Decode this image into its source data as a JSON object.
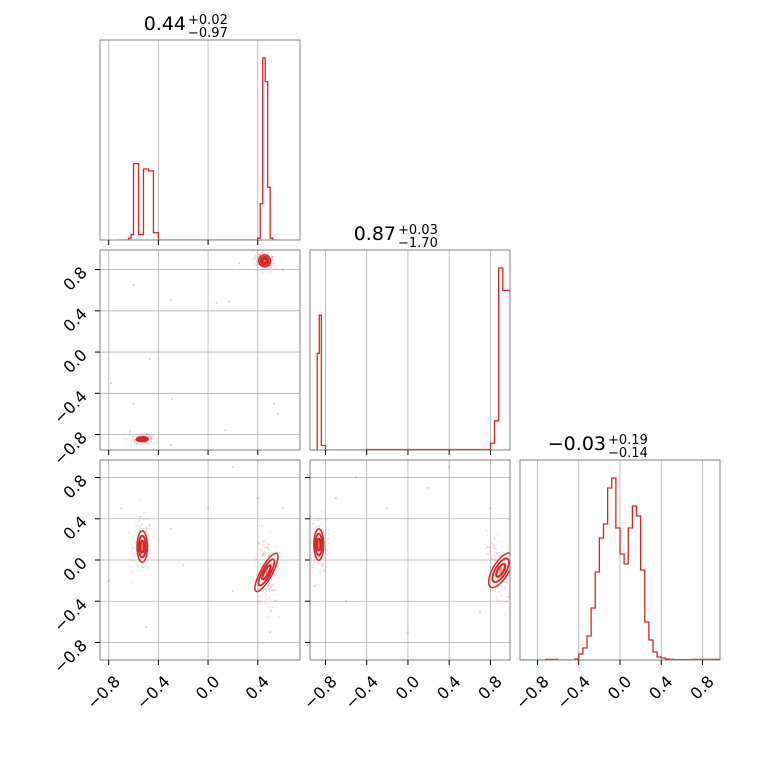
{
  "colors": {
    "series": "#d62728",
    "grid": "#b0b0b0",
    "frame": "#808080",
    "tick": "#000000"
  },
  "chart_data": {
    "type": "corner",
    "grid": true,
    "histogram_bins": 50,
    "params": [
      {
        "range": [
          -0.87,
          0.74
        ],
        "ticks": [
          -0.8,
          -0.4,
          0.0,
          0.4
        ],
        "tick_labels": [
          "−0.8",
          "−0.4",
          "0.0",
          "0.4"
        ],
        "title": {
          "value": "0.44",
          "plus": "+0.02",
          "minus": "−0.97"
        },
        "histogram": [
          {
            "x": -0.72,
            "w": 0
          },
          {
            "x": -0.7,
            "w": 0
          },
          {
            "x": -0.68,
            "w": 0
          },
          {
            "x": -0.66,
            "w": 0
          },
          {
            "x": -0.64,
            "w": 0.01
          },
          {
            "x": -0.62,
            "w": 0.03
          },
          {
            "x": -0.6,
            "w": 0.42
          },
          {
            "x": -0.56,
            "w": 0.03
          },
          {
            "x": -0.52,
            "w": 0.39
          },
          {
            "x": -0.48,
            "w": 0.38
          },
          {
            "x": -0.44,
            "w": 0.04
          },
          {
            "x": -0.4,
            "w": 0
          },
          {
            "x": 0.38,
            "w": 0
          },
          {
            "x": 0.4,
            "w": 0.01
          },
          {
            "x": 0.42,
            "w": 0.2
          },
          {
            "x": 0.44,
            "w": 1.0
          },
          {
            "x": 0.46,
            "w": 0.87
          },
          {
            "x": 0.48,
            "w": 0.29
          },
          {
            "x": 0.5,
            "w": 0.01
          },
          {
            "x": 0.52,
            "w": 0
          }
        ]
      },
      {
        "range": [
          -0.95,
          0.99
        ],
        "ticks": [
          -0.8,
          -0.4,
          0.0,
          0.4,
          0.8
        ],
        "tick_labels": [
          "−0.8",
          "−0.4",
          "0.0",
          "0.4",
          "0.8"
        ],
        "title": {
          "value": "0.87",
          "plus": "+0.03",
          "minus": "−1.70"
        },
        "histogram": [
          {
            "x": -0.95,
            "w": 0
          },
          {
            "x": -0.88,
            "w": 0.43
          },
          {
            "x": -0.86,
            "w": 0.6
          },
          {
            "x": -0.84,
            "w": 0.02
          },
          {
            "x": -0.8,
            "w": 0
          },
          {
            "x": -0.4,
            "w": 0.002
          },
          {
            "x": 0.76,
            "w": 0.002
          },
          {
            "x": 0.8,
            "w": 0.03
          },
          {
            "x": 0.84,
            "w": 0.13
          },
          {
            "x": 0.88,
            "w": 0.81
          },
          {
            "x": 0.92,
            "w": 0.71
          },
          {
            "x": 0.99,
            "w": 0.7
          }
        ]
      },
      {
        "range": [
          -0.97,
          0.97
        ],
        "ticks": [
          -0.8,
          -0.4,
          0.0,
          0.4,
          0.8
        ],
        "tick_labels": [
          "−0.8",
          "−0.4",
          "0.0",
          "0.4",
          "0.8"
        ],
        "title": {
          "value": "−0.03",
          "plus": "+0.19",
          "minus": "−0.14"
        },
        "histogram": [
          {
            "x": -0.97,
            "w": 0
          },
          {
            "x": -0.72,
            "w": 0.003
          },
          {
            "x": -0.68,
            "w": 0.003
          },
          {
            "x": -0.6,
            "w": 0
          },
          {
            "x": -0.44,
            "w": 0.005
          },
          {
            "x": -0.4,
            "w": 0.03
          },
          {
            "x": -0.36,
            "w": 0.06
          },
          {
            "x": -0.32,
            "w": 0.12
          },
          {
            "x": -0.28,
            "w": 0.26
          },
          {
            "x": -0.24,
            "w": 0.44
          },
          {
            "x": -0.2,
            "w": 0.61
          },
          {
            "x": -0.16,
            "w": 0.68
          },
          {
            "x": -0.12,
            "w": 0.86
          },
          {
            "x": -0.08,
            "w": 0.91
          },
          {
            "x": -0.04,
            "w": 0.66
          },
          {
            "x": 0.0,
            "w": 0.53
          },
          {
            "x": 0.04,
            "w": 0.48
          },
          {
            "x": 0.08,
            "w": 0.66
          },
          {
            "x": 0.12,
            "w": 0.77
          },
          {
            "x": 0.16,
            "w": 0.72
          },
          {
            "x": 0.2,
            "w": 0.45
          },
          {
            "x": 0.24,
            "w": 0.19
          },
          {
            "x": 0.28,
            "w": 0.1
          },
          {
            "x": 0.32,
            "w": 0.04
          },
          {
            "x": 0.36,
            "w": 0.015
          },
          {
            "x": 0.4,
            "w": 0.01
          },
          {
            "x": 0.44,
            "w": 0.005
          },
          {
            "x": 0.48,
            "w": 0.003
          },
          {
            "x": 0.52,
            "w": 0.002
          },
          {
            "x": 0.6,
            "w": 0.002
          },
          {
            "x": 0.7,
            "w": 0.003
          },
          {
            "x": 0.97,
            "w": 0
          }
        ]
      }
    ],
    "pairs": [
      {
        "x_param": 0,
        "y_param": 1,
        "clusters": [
          {
            "x": 0.455,
            "y": 0.885,
            "sx": 0.025,
            "sy": 0.03,
            "rho": -0.4
          },
          {
            "x": -0.53,
            "y": -0.845,
            "sx": 0.025,
            "sy": 0.012,
            "rho": 0.2
          }
        ],
        "outliers": [
          {
            "x": -0.3,
            "y": 0.5
          },
          {
            "x": 0.07,
            "y": 0.48
          },
          {
            "x": 0.17,
            "y": 0.49
          },
          {
            "x": -0.6,
            "y": 0.65
          },
          {
            "x": -0.47,
            "y": -0.07
          },
          {
            "x": -0.29,
            "y": -0.45
          },
          {
            "x": -0.78,
            "y": -0.3
          },
          {
            "x": -0.6,
            "y": -0.5
          },
          {
            "x": 0.53,
            "y": -0.5
          },
          {
            "x": -0.3,
            "y": -0.9
          },
          {
            "x": 0.14,
            "y": -0.76
          },
          {
            "x": -0.63,
            "y": -0.77
          },
          {
            "x": 0.25,
            "y": 0.86
          },
          {
            "x": 0.6,
            "y": 0.8
          },
          {
            "x": 0.56,
            "y": -0.6
          }
        ]
      },
      {
        "x_param": 0,
        "y_param": 2,
        "clusters": [
          {
            "x": -0.53,
            "y": 0.13,
            "sx": 0.022,
            "sy": 0.08,
            "rho": 0.0
          },
          {
            "x": 0.47,
            "y": -0.12,
            "sx": 0.025,
            "sy": 0.11,
            "rho": -0.3
          }
        ],
        "outliers": [
          {
            "x": -0.7,
            "y": 0.5
          },
          {
            "x": -0.3,
            "y": 0.3
          },
          {
            "x": 0.4,
            "y": 0.6
          },
          {
            "x": 0.0,
            "y": 0.5
          },
          {
            "x": -0.2,
            "y": -0.05
          },
          {
            "x": 0.2,
            "y": 0.9
          },
          {
            "x": -0.5,
            "y": -0.65
          },
          {
            "x": 0.5,
            "y": -0.7
          },
          {
            "x": -0.8,
            "y": -0.2
          },
          {
            "x": 0.6,
            "y": 0.5
          },
          {
            "x": 0.2,
            "y": -0.3
          }
        ]
      },
      {
        "x_param": 1,
        "y_param": 2,
        "clusters": [
          {
            "x": -0.865,
            "y": 0.15,
            "sx": 0.025,
            "sy": 0.08,
            "rho": 0.0
          },
          {
            "x": 0.9,
            "y": -0.1,
            "sx": 0.04,
            "sy": 0.1,
            "rho": -0.5
          }
        ],
        "outliers": [
          {
            "x": -0.5,
            "y": 0.8
          },
          {
            "x": 0.2,
            "y": 0.7
          },
          {
            "x": -0.6,
            "y": -0.4
          },
          {
            "x": 0.4,
            "y": 0.9
          },
          {
            "x": -0.2,
            "y": 0.5
          },
          {
            "x": 0.7,
            "y": -0.5
          },
          {
            "x": 0.8,
            "y": 0.5
          },
          {
            "x": -0.7,
            "y": 0.6
          },
          {
            "x": 0.0,
            "y": -0.7
          },
          {
            "x": -0.9,
            "y": -0.25
          }
        ]
      }
    ]
  }
}
